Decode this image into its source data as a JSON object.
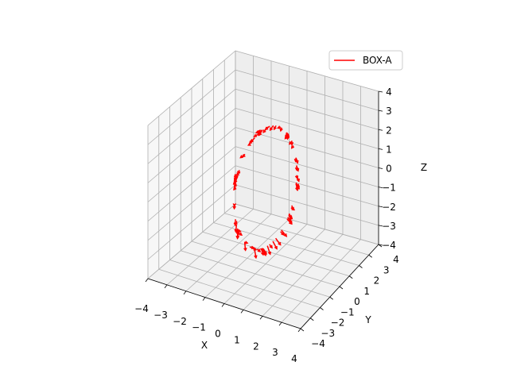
{
  "chart_data": {
    "type": "quiver3d",
    "title": "",
    "xlabel": "X",
    "ylabel": "Y",
    "zlabel": "Z",
    "xlim": [
      -4,
      4
    ],
    "ylim": [
      -4,
      4
    ],
    "zlim": [
      -4,
      4
    ],
    "xticks": [
      "−4",
      "−3",
      "−2",
      "−1",
      "0",
      "1",
      "2",
      "3",
      "4"
    ],
    "yticks": [
      "−4",
      "−3",
      "−2",
      "−1",
      "0",
      "1",
      "2",
      "3",
      "4"
    ],
    "zticks": [
      "−4",
      "−3",
      "−2",
      "−1",
      "0",
      "1",
      "2",
      "3",
      "4"
    ],
    "grid": true,
    "legend_position": "top-right",
    "series": [
      {
        "name": "BOX-A",
        "color": "#ff0000",
        "ring_radius": 3,
        "arrow_count": 80,
        "arrow_length": 0.35
      }
    ]
  }
}
